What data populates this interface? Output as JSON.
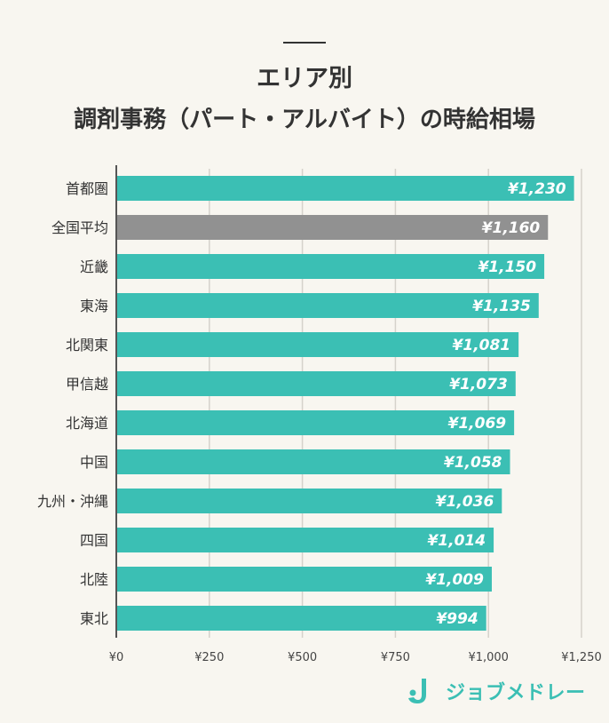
{
  "title_line1": "エリア別",
  "title_line2": "調剤事務（パート・アルバイト）の時給相場",
  "brand": {
    "name": "ジョブメドレー",
    "color": "#3bbfb4"
  },
  "colors": {
    "bar": "#3bbfb4",
    "highlight_bar": "#919191",
    "grid": "#d5d2cb",
    "axis": "#555555"
  },
  "chart_data": {
    "type": "bar",
    "orientation": "horizontal",
    "categories": [
      "首都圏",
      "全国平均",
      "近畿",
      "東海",
      "北関東",
      "甲信越",
      "北海道",
      "中国",
      "九州・沖縄",
      "四国",
      "北陸",
      "東北"
    ],
    "values": [
      1230,
      1160,
      1150,
      1135,
      1081,
      1073,
      1069,
      1058,
      1036,
      1014,
      1009,
      994
    ],
    "value_labels": [
      "¥1,230",
      "¥1,160",
      "¥1,150",
      "¥1,135",
      "¥1,081",
      "¥1,073",
      "¥1,069",
      "¥1,058",
      "¥1,036",
      "¥1,014",
      "¥1,009",
      "¥994"
    ],
    "highlight_category": "全国平均",
    "xlim": [
      0,
      1250
    ],
    "xticks": [
      0,
      250,
      500,
      750,
      1000,
      1250
    ],
    "xtick_labels": [
      "¥0",
      "¥250",
      "¥500",
      "¥750",
      "¥1,000",
      "¥1,250"
    ],
    "grid": true,
    "legend": "none"
  }
}
